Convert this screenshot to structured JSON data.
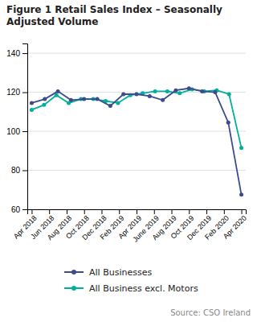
{
  "chart_data": {
    "type": "line",
    "title": "Figure 1 Retail Sales Index – Seasonally\nAdjusted Volume",
    "source": "Source: CSO Ireland",
    "xlim": [
      -0.5,
      24.5
    ],
    "xticks": [
      {
        "value": 0,
        "label": "Apr 2018"
      },
      {
        "value": 2,
        "label": "Jun 2018"
      },
      {
        "value": 4,
        "label": "Aug 2018"
      },
      {
        "value": 6,
        "label": "Oct 2018"
      },
      {
        "value": 8,
        "label": "Dec 2018"
      },
      {
        "value": 10,
        "label": "Feb 2019"
      },
      {
        "value": 12,
        "label": "Apr 2019"
      },
      {
        "value": 14,
        "label": "June 2019"
      },
      {
        "value": 16,
        "label": "Aug 2019"
      },
      {
        "value": 18,
        "label": "Oct 2019"
      },
      {
        "value": 20,
        "label": "Dec 2019"
      },
      {
        "value": 22,
        "label": "Feb 2020"
      },
      {
        "value": 24,
        "label": "Apr 2020"
      }
    ],
    "ylim": [
      60,
      145
    ],
    "yticks": [
      60,
      80,
      100,
      120,
      140
    ],
    "grid": true,
    "legend": "bottom",
    "series": [
      {
        "name": "All Businesses",
        "color": "#3d4b8c",
        "marker": "circle",
        "x": [
          0,
          1.5,
          3,
          4.5,
          6,
          7.5,
          9,
          10.5,
          12,
          13.5,
          15,
          16.5,
          18,
          19.5,
          21,
          22.5,
          24
        ],
        "values": [
          114.5,
          116.5,
          120.5,
          116.0,
          116.5,
          116.5,
          113.0,
          119.0,
          119.0,
          118.0,
          116.0,
          121.0,
          122.0,
          120.5,
          120.0,
          104.5,
          67.5
        ]
      },
      {
        "name": "All Business excl. Motors",
        "color": "#00b09b",
        "marker": "circle",
        "x": [
          0,
          1.411764705882353,
          2.823529411764706,
          4.235294117647059,
          5.647058823529412,
          7.0588235294117645,
          8.470588235294118,
          9.882352941176471,
          11.294117647058824,
          12.705882352941176,
          14.117647058823529,
          15.529411764705882,
          16.941176470588236,
          18.352941176470587,
          19.764705882352942,
          21.176470588235293,
          22.58823529411765,
          24
        ],
        "values": [
          111.0,
          113.5,
          118.5,
          114.5,
          116.5,
          116.5,
          115.5,
          114.5,
          118.5,
          119.5,
          120.5,
          120.5,
          119.5,
          121.5,
          120.5,
          121.0,
          119.0,
          91.5
        ]
      }
    ]
  }
}
